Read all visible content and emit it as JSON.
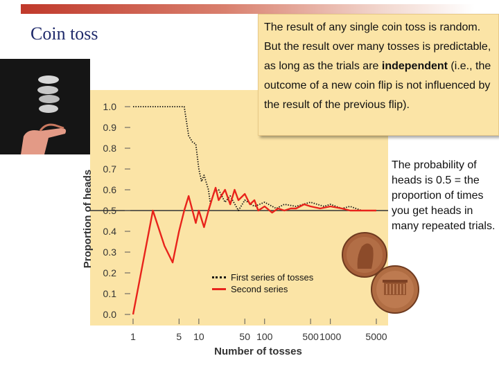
{
  "slide": {
    "title": "Coin toss",
    "callout_lead": "The result of any single coin toss is random.  But the result over many tosses is predictable, as long as the trials are ",
    "callout_bold": "independent",
    "callout_tail": " (i.e., the outcome of a new coin flip is not influenced by the result of the previous flip).",
    "side_note": "The probability of heads is 0.5 = the proportion of times you get heads in many repeated trials."
  },
  "chart_data": {
    "type": "line",
    "xlabel": "Number of tosses",
    "ylabel": "Proportion of heads",
    "xscale": "log",
    "xlim": [
      1,
      5000
    ],
    "ylim": [
      0,
      1
    ],
    "x_ticks": [
      1,
      5,
      10,
      50,
      100,
      500,
      1000,
      5000
    ],
    "x_tick_labels": [
      "1",
      "5",
      "10",
      "50",
      "100",
      "500",
      "1000",
      "5000"
    ],
    "y_ticks": [
      0,
      0.1,
      0.2,
      0.3,
      0.4,
      0.5,
      0.6,
      0.7,
      0.8,
      0.9,
      1.0
    ],
    "y_tick_labels": [
      "0.0",
      "0.1",
      "0.2",
      "0.3",
      "0.4",
      "0.5",
      "0.6",
      "0.7",
      "0.8",
      "0.9",
      "1.0"
    ],
    "reference_line": 0.5,
    "legend_position": "lower-left",
    "series": [
      {
        "name": "First series of tosses",
        "style": "dotted",
        "color": "#111111",
        "x": [
          1,
          2,
          4,
          6,
          7,
          8,
          9,
          10,
          11,
          12,
          14,
          15,
          17,
          20,
          25,
          30,
          40,
          50,
          70,
          100,
          150,
          200,
          300,
          500,
          800,
          1000,
          1500,
          2000,
          3000,
          5000
        ],
        "y": [
          1.0,
          1.0,
          1.0,
          1.0,
          0.86,
          0.83,
          0.82,
          0.7,
          0.64,
          0.67,
          0.6,
          0.53,
          0.59,
          0.6,
          0.54,
          0.57,
          0.5,
          0.55,
          0.52,
          0.54,
          0.51,
          0.53,
          0.52,
          0.54,
          0.52,
          0.53,
          0.51,
          0.52,
          0.5,
          0.5
        ]
      },
      {
        "name": "Second series",
        "style": "solid",
        "color": "#e8231b",
        "x": [
          1,
          2,
          3,
          4,
          5,
          6,
          7,
          8,
          9,
          10,
          12,
          14,
          16,
          18,
          20,
          25,
          30,
          35,
          40,
          50,
          60,
          70,
          80,
          100,
          130,
          160,
          200,
          250,
          300,
          400,
          500,
          700,
          1000,
          1500,
          2000,
          3000,
          5000
        ],
        "y": [
          0.0,
          0.5,
          0.33,
          0.25,
          0.4,
          0.5,
          0.57,
          0.5,
          0.44,
          0.5,
          0.42,
          0.5,
          0.56,
          0.61,
          0.55,
          0.6,
          0.53,
          0.6,
          0.55,
          0.58,
          0.53,
          0.55,
          0.5,
          0.52,
          0.49,
          0.51,
          0.5,
          0.51,
          0.51,
          0.53,
          0.52,
          0.51,
          0.52,
          0.51,
          0.5,
          0.5,
          0.5
        ]
      }
    ]
  }
}
